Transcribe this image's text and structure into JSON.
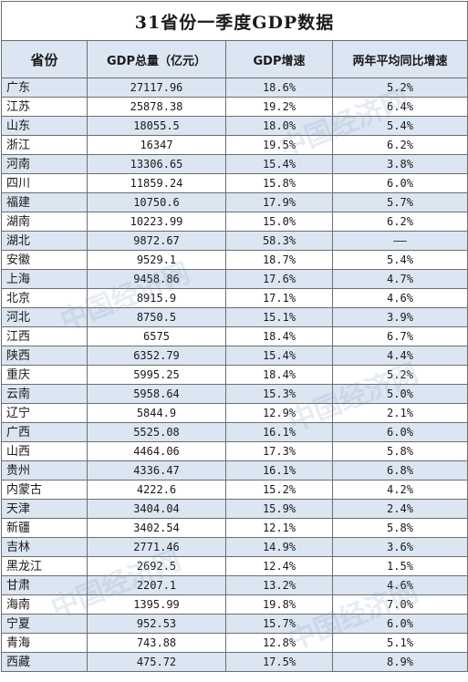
{
  "title": "31省份一季度GDP数据",
  "headers": [
    "省份",
    "GDP总量（亿元）",
    "GDP增速",
    "两年平均同比增速"
  ],
  "rows": [
    [
      "广东",
      "27117.96",
      "18.6%",
      "5.2%"
    ],
    [
      "江苏",
      "25878.38",
      "19.2%",
      "6.4%"
    ],
    [
      "山东",
      "18055.5",
      "18.0%",
      "5.4%"
    ],
    [
      "浙江",
      "16347",
      "19.5%",
      "6.2%"
    ],
    [
      "河南",
      "13306.65",
      "15.4%",
      "3.8%"
    ],
    [
      "四川",
      "11859.24",
      "15.8%",
      "6.0%"
    ],
    [
      "福建",
      "10750.6",
      "17.9%",
      "5.7%"
    ],
    [
      "湖南",
      "10223.99",
      "15.0%",
      "6.2%"
    ],
    [
      "湖北",
      "9872.67",
      "58.3%",
      "——"
    ],
    [
      "安徽",
      "9529.1",
      "18.7%",
      "5.4%"
    ],
    [
      "上海",
      "9458.86",
      "17.6%",
      "4.7%"
    ],
    [
      "北京",
      "8915.9",
      "17.1%",
      "4.6%"
    ],
    [
      "河北",
      "8750.5",
      "15.1%",
      "3.9%"
    ],
    [
      "江西",
      "6575",
      "18.4%",
      "6.7%"
    ],
    [
      "陕西",
      "6352.79",
      "15.4%",
      "4.4%"
    ],
    [
      "重庆",
      "5995.25",
      "18.4%",
      "5.2%"
    ],
    [
      "云南",
      "5958.64",
      "15.3%",
      "5.0%"
    ],
    [
      "辽宁",
      "5844.9",
      "12.9%",
      "2.1%"
    ],
    [
      "广西",
      "5525.08",
      "16.1%",
      "6.0%"
    ],
    [
      "山西",
      "4464.06",
      "17.3%",
      "5.8%"
    ],
    [
      "贵州",
      "4336.47",
      "16.1%",
      "6.8%"
    ],
    [
      "内蒙古",
      "4222.6",
      "15.2%",
      "4.2%"
    ],
    [
      "天津",
      "3404.04",
      "15.9%",
      "2.4%"
    ],
    [
      "新疆",
      "3402.54",
      "12.1%",
      "5.8%"
    ],
    [
      "吉林",
      "2771.46",
      "14.9%",
      "3.6%"
    ],
    [
      "黑龙江",
      "2692.5",
      "12.4%",
      "1.5%"
    ],
    [
      "甘肃",
      "2207.1",
      "13.2%",
      "4.6%"
    ],
    [
      "海南",
      "1395.99",
      "19.8%",
      "7.0%"
    ],
    [
      "宁夏",
      "952.53",
      "15.7%",
      "6.0%"
    ],
    [
      "青海",
      "743.88",
      "12.8%",
      "5.1%"
    ],
    [
      "西藏",
      "475.72",
      "17.5%",
      "8.9%"
    ]
  ],
  "watermark": "中国经济网"
}
